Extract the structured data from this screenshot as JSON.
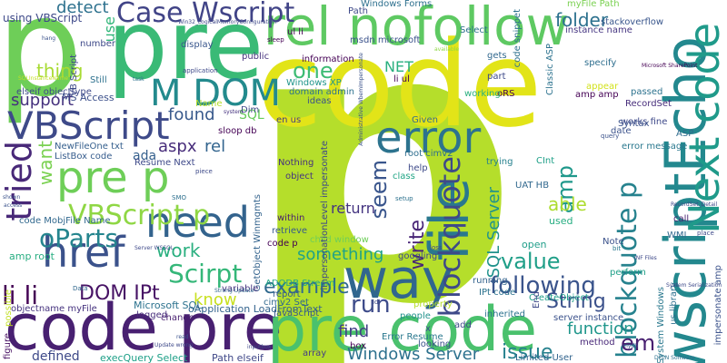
{
  "words": [
    {
      "text": "p",
      "color": "#b5de2b"
    },
    {
      "text": "code",
      "color": "#e2e418"
    },
    {
      "text": "p",
      "color": "#6ece58"
    },
    {
      "text": "pre",
      "color": "#3aba76"
    },
    {
      "text": "wscriptEcho",
      "color": "#23888e"
    },
    {
      "text": "code pre",
      "color": "#482071"
    },
    {
      "text": "pre code",
      "color": "#4ac16d"
    },
    {
      "text": "file",
      "color": "#2a788e"
    },
    {
      "text": "way",
      "color": "#31668e"
    },
    {
      "text": "rel nofollow",
      "color": "#5ec962"
    },
    {
      "text": "Next code",
      "color": "#1f9a8a"
    },
    {
      "text": "error",
      "color": "#2c738e"
    },
    {
      "text": "pre p",
      "color": "#6ece58"
    },
    {
      "text": "VBScript",
      "color": "#3e4a89"
    },
    {
      "text": "M DOM",
      "color": "#238a8d"
    },
    {
      "text": "href",
      "color": "#3b528b"
    },
    {
      "text": "need",
      "color": "#33638d"
    },
    {
      "text": "tried",
      "color": "#482878"
    },
    {
      "text": "Case Wscript",
      "color": "#414487"
    },
    {
      "text": "blockquote",
      "color": "#3e4989"
    },
    {
      "text": "blockquote p",
      "color": "#26828e"
    },
    {
      "text": "VBScript p",
      "color": "#8fd744"
    },
    {
      "text": "Scirpt",
      "color": "#35b779"
    },
    {
      "text": "oParts",
      "color": "#25858e"
    },
    {
      "text": "li li",
      "color": "#440154"
    },
    {
      "text": "DOM IPt",
      "color": "#471365"
    },
    {
      "text": "work",
      "color": "#29af7f"
    },
    {
      "text": "one",
      "color": "#3dbc74"
    },
    {
      "text": "run",
      "color": "#3e4c8a"
    },
    {
      "text": "seem",
      "color": "#39558c"
    },
    {
      "text": "amp",
      "color": "#1f988b"
    },
    {
      "text": "value",
      "color": "#1f9f88"
    },
    {
      "text": "following",
      "color": "#3a548c"
    },
    {
      "text": "example",
      "color": "#30698e"
    },
    {
      "text": "something",
      "color": "#1fa287"
    },
    {
      "text": "Windows Server",
      "color": "#2d718e"
    },
    {
      "text": "issue",
      "color": "#26818e"
    },
    {
      "text": "String",
      "color": "#3b518b"
    },
    {
      "text": "function",
      "color": "#1f968b"
    },
    {
      "text": "em",
      "color": "#481f70"
    },
    {
      "text": "SQL Server",
      "color": "#20928c"
    },
    {
      "text": "able",
      "color": "#addc30"
    },
    {
      "text": "write",
      "color": "#482576"
    },
    {
      "text": "folder",
      "color": "#2c718e"
    },
    {
      "text": "thing",
      "color": "#a8db34"
    },
    {
      "text": "detect",
      "color": "#2d718e"
    },
    {
      "text": "support",
      "color": "#46327e"
    },
    {
      "text": "found",
      "color": "#38598c"
    },
    {
      "text": "aspx",
      "color": "#472c7a"
    },
    {
      "text": "rel",
      "color": "#32648e"
    },
    {
      "text": "NET",
      "color": "#2ab07f"
    },
    {
      "text": "want",
      "color": "#7ad151"
    },
    {
      "text": "know",
      "color": "#c8e020"
    },
    {
      "text": "amp root",
      "color": "#27ad81"
    },
    {
      "text": "defined",
      "color": "#3e4a89"
    },
    {
      "text": "find",
      "color": "#424086"
    },
    {
      "text": "return",
      "color": "#453581"
    },
    {
      "text": "SQL",
      "color": "#67cc5c"
    },
    {
      "text": "ada",
      "color": "#35608d"
    },
    {
      "text": "used",
      "color": "#26ad81"
    },
    {
      "text": "open",
      "color": "#1f9e89"
    },
    {
      "text": "using VBScript",
      "color": "#3e4989"
    },
    {
      "text": "use",
      "color": "#32b67a"
    },
    {
      "text": "MS Access",
      "color": "#3c508b"
    },
    {
      "text": "elseif objecttype",
      "color": "#3e4a89"
    },
    {
      "text": "NewFileOne txt",
      "color": "#355f8d"
    },
    {
      "text": "ListBox code",
      "color": "#365c8d"
    },
    {
      "text": "code MobjFile Name",
      "color": "#31688e"
    },
    {
      "text": "Microsoft SQL",
      "color": "#2c728e"
    },
    {
      "text": "oApplication LoadFromText",
      "color": "#33638d"
    },
    {
      "text": "execQuery Select",
      "color": "#1fa088"
    },
    {
      "text": "objectname myFile",
      "color": "#46337f"
    },
    {
      "text": "Path elseif",
      "color": "#3f4788"
    },
    {
      "text": "code p",
      "color": "#440154"
    },
    {
      "text": "retrieve",
      "color": "#375a8c"
    },
    {
      "text": "object",
      "color": "#453581"
    },
    {
      "text": "Nothing",
      "color": "#46307e"
    },
    {
      "text": "root cimv2",
      "color": "#2e6e8e"
    },
    {
      "text": "CInt",
      "color": "#1fa088"
    },
    {
      "text": "UAT HB",
      "color": "#31688e"
    },
    {
      "text": "trying",
      "color": "#26818e"
    },
    {
      "text": "help",
      "color": "#3e4a89"
    },
    {
      "text": "class",
      "color": "#21a585"
    },
    {
      "text": "ADODB Stream",
      "color": "#22a785"
    },
    {
      "text": "report",
      "color": "#365d8d"
    },
    {
      "text": "within",
      "color": "#481d6f"
    },
    {
      "text": "child window",
      "color": "#6ece58"
    },
    {
      "text": "googling",
      "color": "#3e4989"
    },
    {
      "text": "Error Resume",
      "color": "#2a788e"
    },
    {
      "text": "looking",
      "color": "#3b528b"
    },
    {
      "text": "box",
      "color": "#440154"
    },
    {
      "text": "array",
      "color": "#433e85"
    },
    {
      "text": "people",
      "color": "#21918c"
    },
    {
      "text": "server instance",
      "color": "#3b528b"
    },
    {
      "text": "IPt code",
      "color": "#2c728e"
    },
    {
      "text": "running",
      "color": "#33638d"
    },
    {
      "text": "CreateObject",
      "color": "#1f9e89"
    },
    {
      "text": "method",
      "color": "#482878"
    },
    {
      "text": "Limited User",
      "color": "#32648e"
    },
    {
      "text": "WMI",
      "color": "#31688e"
    },
    {
      "text": "call",
      "color": "#481f70"
    },
    {
      "text": "Note",
      "color": "#3b528b"
    },
    {
      "text": "perform",
      "color": "#1fa088"
    },
    {
      "text": "error message",
      "color": "#2a788e"
    },
    {
      "text": "date",
      "color": "#3b528b"
    },
    {
      "text": "works fine",
      "color": "#3e4989"
    },
    {
      "text": "ASP",
      "color": "#2f6c8e"
    },
    {
      "text": "RecordSet",
      "color": "#472d7b"
    },
    {
      "text": "amp amp",
      "color": "#440154"
    },
    {
      "text": "passed",
      "color": "#2c728e"
    },
    {
      "text": "appear",
      "color": "#d2e21b"
    },
    {
      "text": "specify",
      "color": "#2e6e8e"
    },
    {
      "text": "Classic ASP",
      "color": "#2c728e"
    },
    {
      "text": "instance name",
      "color": "#453581"
    },
    {
      "text": "Select",
      "color": "#2d708e"
    },
    {
      "text": "gets",
      "color": "#31688e"
    },
    {
      "text": "part",
      "color": "#3e4a89"
    },
    {
      "text": "oRS",
      "color": "#440154"
    },
    {
      "text": "working",
      "color": "#2ab07f"
    },
    {
      "text": "li ul",
      "color": "#440154"
    },
    {
      "text": "ul li",
      "color": "#440154"
    },
    {
      "text": "msdn microsoft",
      "color": "#3b528b"
    },
    {
      "text": "Path",
      "color": "#3e4a89"
    },
    {
      "text": "Windows Forms",
      "color": "#2d708e"
    },
    {
      "text": "myFile Path",
      "color": "#7ad151"
    },
    {
      "text": "stackoverflow",
      "color": "#39568c"
    },
    {
      "text": "code snippet",
      "color": "#2d718e"
    },
    {
      "text": "information",
      "color": "#440154"
    },
    {
      "text": "Windows XP",
      "color": "#1f958b"
    },
    {
      "text": "domain admin",
      "color": "#2c728e"
    },
    {
      "text": "ideas",
      "color": "#3b528b"
    },
    {
      "text": "Given",
      "color": "#2e6e8e"
    },
    {
      "text": "en us",
      "color": "#433e85"
    },
    {
      "text": "Dim",
      "color": "#3e4a89"
    },
    {
      "text": "impersonationLevel impersonate",
      "color": "#3e4989"
    },
    {
      "text": "public",
      "color": "#46327e"
    },
    {
      "text": "GetObject Winmgmts",
      "color": "#33638d"
    },
    {
      "text": "variable",
      "color": "#46327e"
    },
    {
      "text": "logged",
      "color": "#472d7b"
    },
    {
      "text": "sloop db",
      "color": "#440154"
    },
    {
      "text": "Resume Next",
      "color": "#3e4989"
    },
    {
      "text": "display",
      "color": "#39568c"
    },
    {
      "text": "Still",
      "color": "#2d718e"
    },
    {
      "text": "VB Script",
      "color": "#3e4a89"
    },
    {
      "text": "number",
      "color": "#3e4989"
    },
    {
      "text": "Name",
      "color": "#b5de2b"
    },
    {
      "text": "change",
      "color": "#481f70"
    },
    {
      "text": "Syntax",
      "color": "#3b528b"
    },
    {
      "text": "us library",
      "color": "#2d708e"
    },
    {
      "text": "System Windows",
      "color": "#2a788e"
    },
    {
      "text": "impersonate amp",
      "color": "#3b528b"
    },
    {
      "text": "figure",
      "color": "#471063"
    },
    {
      "text": "possible",
      "color": "#c2df23"
    },
    {
      "text": "cimv2 Set",
      "color": "#31688e"
    },
    {
      "text": "JavaScript",
      "color": "#375a8c"
    },
    {
      "text": "property",
      "color": "#b5de2b"
    },
    {
      "text": "inherited",
      "color": "#2c728e"
    },
    {
      "text": "add",
      "color": "#3e4a89"
    },
    {
      "text": "x",
      "color": "#3b528b"
    },
    {
      "text": "End",
      "color": "#3e4989"
    },
    {
      "text": "bit",
      "color": "#2a788e"
    },
    {
      "text": "place",
      "color": "#3e4a89"
    },
    {
      "text": "query",
      "color": "#3b528b"
    },
    {
      "text": "setup",
      "color": "#2d718e"
    },
    {
      "text": "loss",
      "color": "#3e4989"
    },
    {
      "text": "sleep",
      "color": "#440154"
    },
    {
      "text": "Microsoft SharePoint",
      "color": "#440154"
    },
    {
      "text": "application",
      "color": "#3e4989"
    },
    {
      "text": "Data",
      "color": "#31688e"
    },
    {
      "text": "hang",
      "color": "#3b528b"
    },
    {
      "text": "piece",
      "color": "#3e4a89"
    },
    {
      "text": "task",
      "color": "#2d718e"
    },
    {
      "text": "shown",
      "color": "#3b528b"
    },
    {
      "text": "Server WSSQL",
      "color": "#3e4989"
    },
    {
      "text": "SMO",
      "color": "#2d708e"
    },
    {
      "text": "read",
      "color": "#3b528b"
    },
    {
      "text": "Update wrong",
      "color": "#3e4989"
    },
    {
      "text": "Strong Update",
      "color": "#31688e"
    },
    {
      "text": "Win32_LogicalMemoryConfiguration",
      "color": "#3e4989"
    },
    {
      "text": "Administrative WbemImpersonate",
      "color": "#3b528b"
    },
    {
      "text": "system",
      "color": "#46337f"
    },
    {
      "text": "available",
      "color": "#8fd744"
    },
    {
      "text": "id",
      "color": "#3e4a89"
    },
    {
      "text": "INF Files",
      "color": "#3e4989"
    },
    {
      "text": "inputbox",
      "color": "#3e4a89"
    },
    {
      "text": "mydb",
      "color": "#3b528b"
    },
    {
      "text": "SQLInstanceName",
      "color": "#c2df23"
    },
    {
      "text": "DELN Software",
      "color": "#2d718e"
    },
    {
      "text": "System Serialization",
      "color": "#3e4989"
    },
    {
      "text": "RecordSet_Detail",
      "color": "#3e4989"
    },
    {
      "text": "access",
      "color": "#3b528b"
    }
  ]
}
